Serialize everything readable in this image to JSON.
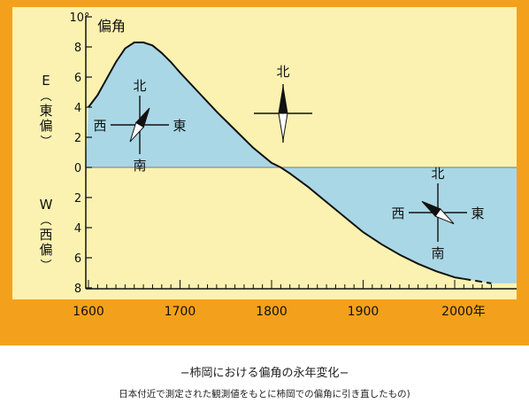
{
  "chart_data": {
    "type": "area",
    "title": "偏角",
    "y_unit_top": "10°",
    "ylabel_east": "E(東偏)",
    "ylabel_west": "W(西偏)",
    "x_ticks": [
      "1600",
      "1700",
      "1800",
      "1900",
      "2000年"
    ],
    "x_tick_values": [
      1600,
      1700,
      1800,
      1900,
      2000
    ],
    "y_ticks_east": [
      "8",
      "6",
      "4",
      "2"
    ],
    "y_ticks_west": [
      "2",
      "4",
      "6",
      "8"
    ],
    "y_zero_label": "0",
    "xlim": [
      1600,
      2045
    ],
    "ylim": [
      -8,
      10
    ],
    "series": [
      {
        "x": [
          1600,
          1610,
          1620,
          1630,
          1640,
          1650,
          1660,
          1670,
          1680,
          1690,
          1700,
          1720,
          1740,
          1760,
          1780,
          1800,
          1810,
          1820,
          1840,
          1860,
          1880,
          1900,
          1920,
          1940,
          1960,
          1980,
          2000,
          2010
        ],
        "y": [
          4.0,
          4.8,
          5.9,
          7.0,
          7.9,
          8.3,
          8.3,
          8.1,
          7.6,
          7.0,
          6.3,
          5.0,
          3.7,
          2.5,
          1.3,
          0.3,
          0.0,
          -0.4,
          -1.3,
          -2.3,
          -3.3,
          -4.3,
          -5.1,
          -5.8,
          -6.4,
          -6.9,
          -7.3,
          -7.4
        ]
      }
    ],
    "projection": {
      "x": [
        2010,
        2020,
        2030,
        2040
      ],
      "y": [
        -7.4,
        -7.5,
        -7.6,
        -7.7
      ],
      "style": "dashed"
    },
    "compass_labels": {
      "north": "北",
      "south": "南",
      "east": "東",
      "west": "西"
    },
    "colors": {
      "frame": "#f3a11c",
      "plot_bg": "#fbf2b1",
      "fill": "#a9d7e6",
      "line": "#111111",
      "needle_north": "#111111",
      "needle_south": "#ffffff"
    }
  },
  "captions": {
    "title": "−柿岡における偏角の永年変化−",
    "note": "日本付近で測定された観測値をもとに柿岡での偏角に引き直したもの)"
  }
}
